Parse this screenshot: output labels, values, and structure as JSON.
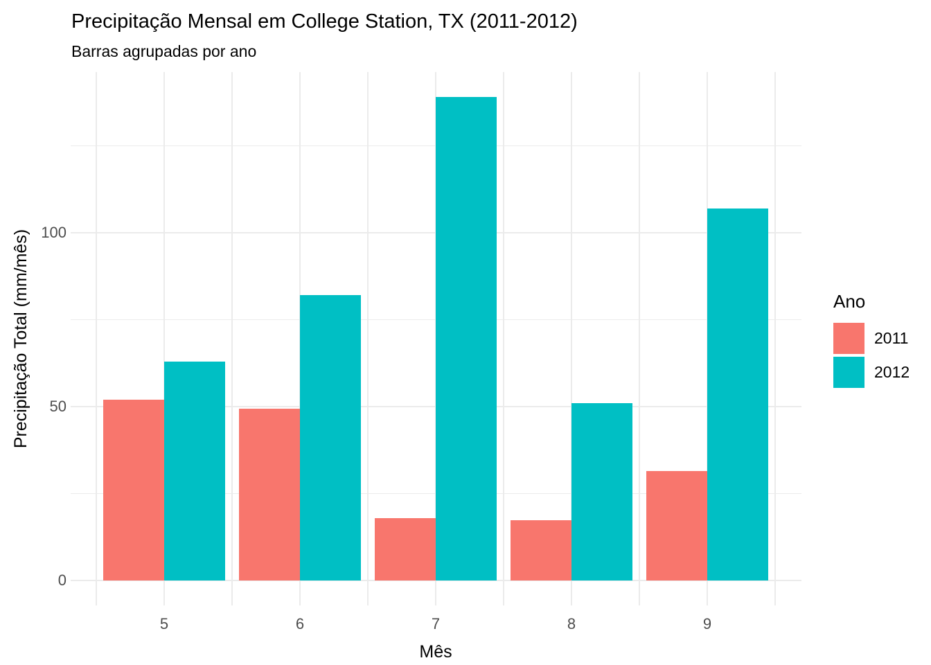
{
  "chart_data": {
    "type": "bar",
    "title": "Precipitação Mensal em College Station, TX (2011-2012)",
    "subtitle": "Barras agrupadas por ano",
    "xlabel": "Mês",
    "ylabel": "Precipitação Total (mm/mês)",
    "categories": [
      5,
      6,
      7,
      8,
      9
    ],
    "series": [
      {
        "name": "2011",
        "color": "#F8766D",
        "values": [
          52,
          49.5,
          18,
          17.3,
          31.5
        ]
      },
      {
        "name": "2012",
        "color": "#00BFC4",
        "values": [
          63,
          82,
          139,
          51,
          107
        ]
      }
    ],
    "legend": {
      "title": "Ano",
      "position": "right",
      "labels": [
        "2011",
        "2012"
      ]
    },
    "y_ticks": [
      0,
      50,
      100
    ],
    "y_tick_labels": [
      "0",
      "50",
      "100"
    ],
    "y_minor_ticks": [
      25,
      75,
      125
    ],
    "ylim": [
      -7.3,
      146.4
    ],
    "xlim": [
      4.3,
      9.7
    ],
    "grid": true,
    "bar_group_width": 0.9,
    "colors": {
      "grid": "#EBEBEB",
      "tick_text": "#4D4D4D",
      "text": "#000000",
      "background": "#FFFFFF"
    }
  }
}
